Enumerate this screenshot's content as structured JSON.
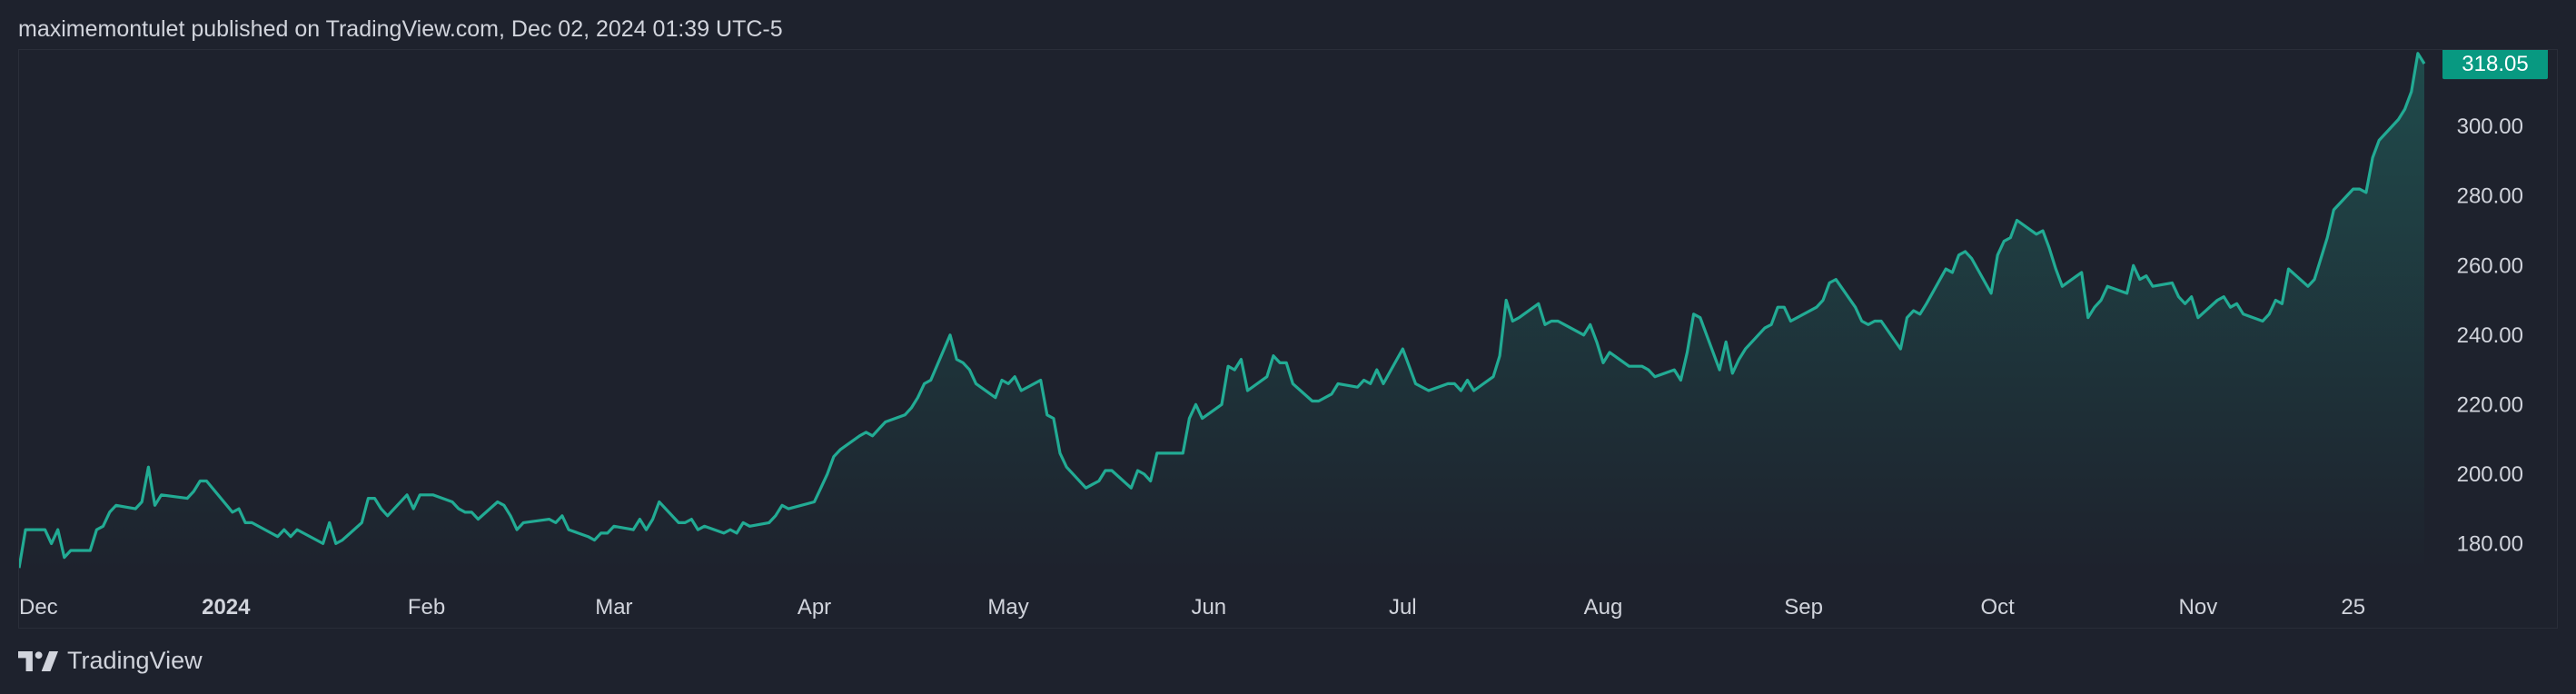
{
  "header": {
    "published_text": "maximemontulet published on TradingView.com, Dec 02, 2024 01:39 UTC-5"
  },
  "footer": {
    "brand": "TradingView"
  },
  "colors": {
    "background": "#1e222d",
    "line": "#22ab94",
    "fill_top": "#22ab94",
    "axis_text": "#d1d4dc",
    "price_badge": "#089981",
    "border": "#2a2e39"
  },
  "chart_data": {
    "type": "area",
    "title": "",
    "xlabel": "",
    "ylabel": "",
    "ylim": [
      172,
      322
    ],
    "y_ticks": [
      "180.00",
      "200.00",
      "220.00",
      "240.00",
      "260.00",
      "280.00",
      "300.00"
    ],
    "x_ticks": [
      {
        "label": "Dec",
        "date": "2023-12-01",
        "bold": false
      },
      {
        "label": "2024",
        "date": "2024-01-01",
        "bold": true
      },
      {
        "label": "Feb",
        "date": "2024-02-01",
        "bold": false
      },
      {
        "label": "Mar",
        "date": "2024-03-01",
        "bold": false
      },
      {
        "label": "Apr",
        "date": "2024-04-01",
        "bold": false
      },
      {
        "label": "May",
        "date": "2024-05-01",
        "bold": false
      },
      {
        "label": "Jun",
        "date": "2024-06-01",
        "bold": false
      },
      {
        "label": "Jul",
        "date": "2024-07-01",
        "bold": false
      },
      {
        "label": "Aug",
        "date": "2024-08-01",
        "bold": false
      },
      {
        "label": "Sep",
        "date": "2024-09-01",
        "bold": false
      },
      {
        "label": "Oct",
        "date": "2024-10-01",
        "bold": false
      },
      {
        "label": "Nov",
        "date": "2024-11-01",
        "bold": false
      },
      {
        "label": "25",
        "date": "2024-11-25",
        "bold": false
      }
    ],
    "last_price": "318.05",
    "series": [
      {
        "points": [
          [
            "2023-11-30",
            173
          ],
          [
            "2023-12-01",
            184
          ],
          [
            "2023-12-04",
            184
          ],
          [
            "2023-12-05",
            180
          ],
          [
            "2023-12-06",
            184
          ],
          [
            "2023-12-07",
            176
          ],
          [
            "2023-12-08",
            178
          ],
          [
            "2023-12-11",
            178
          ],
          [
            "2023-12-12",
            184
          ],
          [
            "2023-12-13",
            185
          ],
          [
            "2023-12-14",
            189
          ],
          [
            "2023-12-15",
            191
          ],
          [
            "2023-12-18",
            190
          ],
          [
            "2023-12-19",
            192
          ],
          [
            "2023-12-20",
            202
          ],
          [
            "2023-12-21",
            191
          ],
          [
            "2023-12-22",
            194
          ],
          [
            "2023-12-26",
            193
          ],
          [
            "2023-12-27",
            195
          ],
          [
            "2023-12-28",
            198
          ],
          [
            "2023-12-29",
            198
          ],
          [
            "2024-01-02",
            189
          ],
          [
            "2024-01-03",
            190
          ],
          [
            "2024-01-04",
            186
          ],
          [
            "2024-01-05",
            186
          ],
          [
            "2024-01-08",
            183
          ],
          [
            "2024-01-09",
            182
          ],
          [
            "2024-01-10",
            184
          ],
          [
            "2024-01-11",
            182
          ],
          [
            "2024-01-12",
            184
          ],
          [
            "2024-01-16",
            180
          ],
          [
            "2024-01-17",
            186
          ],
          [
            "2024-01-18",
            180
          ],
          [
            "2024-01-19",
            181
          ],
          [
            "2024-01-22",
            186
          ],
          [
            "2024-01-23",
            193
          ],
          [
            "2024-01-24",
            193
          ],
          [
            "2024-01-25",
            190
          ],
          [
            "2024-01-26",
            188
          ],
          [
            "2024-01-29",
            194
          ],
          [
            "2024-01-30",
            190
          ],
          [
            "2024-01-31",
            194
          ],
          [
            "2024-02-01",
            194
          ],
          [
            "2024-02-02",
            194
          ],
          [
            "2024-02-05",
            192
          ],
          [
            "2024-02-06",
            190
          ],
          [
            "2024-02-07",
            189
          ],
          [
            "2024-02-08",
            189
          ],
          [
            "2024-02-09",
            187
          ],
          [
            "2024-02-12",
            192
          ],
          [
            "2024-02-13",
            191
          ],
          [
            "2024-02-14",
            188
          ],
          [
            "2024-02-15",
            184
          ],
          [
            "2024-02-16",
            186
          ],
          [
            "2024-02-20",
            187
          ],
          [
            "2024-02-21",
            186
          ],
          [
            "2024-02-22",
            188
          ],
          [
            "2024-02-23",
            184
          ],
          [
            "2024-02-26",
            182
          ],
          [
            "2024-02-27",
            181
          ],
          [
            "2024-02-28",
            183
          ],
          [
            "2024-02-29",
            183
          ],
          [
            "2024-03-01",
            185
          ],
          [
            "2024-03-04",
            184
          ],
          [
            "2024-03-05",
            187
          ],
          [
            "2024-03-06",
            184
          ],
          [
            "2024-03-07",
            187
          ],
          [
            "2024-03-08",
            192
          ],
          [
            "2024-03-11",
            186
          ],
          [
            "2024-03-12",
            186
          ],
          [
            "2024-03-13",
            187
          ],
          [
            "2024-03-14",
            184
          ],
          [
            "2024-03-15",
            185
          ],
          [
            "2024-03-18",
            183
          ],
          [
            "2024-03-19",
            184
          ],
          [
            "2024-03-20",
            183
          ],
          [
            "2024-03-21",
            186
          ],
          [
            "2024-03-22",
            185
          ],
          [
            "2024-03-25",
            186
          ],
          [
            "2024-03-26",
            188
          ],
          [
            "2024-03-27",
            191
          ],
          [
            "2024-03-28",
            190
          ],
          [
            "2024-04-01",
            192
          ],
          [
            "2024-04-02",
            196
          ],
          [
            "2024-04-03",
            200
          ],
          [
            "2024-04-04",
            205
          ],
          [
            "2024-04-05",
            207
          ],
          [
            "2024-04-08",
            211
          ],
          [
            "2024-04-09",
            212
          ],
          [
            "2024-04-10",
            211
          ],
          [
            "2024-04-11",
            213
          ],
          [
            "2024-04-12",
            215
          ],
          [
            "2024-04-15",
            217
          ],
          [
            "2024-04-16",
            219
          ],
          [
            "2024-04-17",
            222
          ],
          [
            "2024-04-18",
            226
          ],
          [
            "2024-04-19",
            227
          ],
          [
            "2024-04-22",
            240
          ],
          [
            "2024-04-23",
            233
          ],
          [
            "2024-04-24",
            232
          ],
          [
            "2024-04-25",
            230
          ],
          [
            "2024-04-26",
            226
          ],
          [
            "2024-04-29",
            222
          ],
          [
            "2024-04-30",
            227
          ],
          [
            "2024-05-01",
            226
          ],
          [
            "2024-05-02",
            228
          ],
          [
            "2024-05-03",
            224
          ],
          [
            "2024-05-06",
            227
          ],
          [
            "2024-05-07",
            217
          ],
          [
            "2024-05-08",
            216
          ],
          [
            "2024-05-09",
            206
          ],
          [
            "2024-05-10",
            202
          ],
          [
            "2024-05-13",
            196
          ],
          [
            "2024-05-14",
            197
          ],
          [
            "2024-05-15",
            198
          ],
          [
            "2024-05-16",
            201
          ],
          [
            "2024-05-17",
            201
          ],
          [
            "2024-05-20",
            196
          ],
          [
            "2024-05-21",
            201
          ],
          [
            "2024-05-22",
            200
          ],
          [
            "2024-05-23",
            198
          ],
          [
            "2024-05-24",
            206
          ],
          [
            "2024-05-28",
            206
          ],
          [
            "2024-05-29",
            216
          ],
          [
            "2024-05-30",
            220
          ],
          [
            "2024-05-31",
            216
          ],
          [
            "2024-06-03",
            220
          ],
          [
            "2024-06-04",
            231
          ],
          [
            "2024-06-05",
            230
          ],
          [
            "2024-06-06",
            233
          ],
          [
            "2024-06-07",
            224
          ],
          [
            "2024-06-10",
            228
          ],
          [
            "2024-06-11",
            234
          ],
          [
            "2024-06-12",
            232
          ],
          [
            "2024-06-13",
            232
          ],
          [
            "2024-06-14",
            226
          ],
          [
            "2024-06-17",
            221
          ],
          [
            "2024-06-18",
            221
          ],
          [
            "2024-06-20",
            223
          ],
          [
            "2024-06-21",
            226
          ],
          [
            "2024-06-24",
            225
          ],
          [
            "2024-06-25",
            227
          ],
          [
            "2024-06-26",
            226
          ],
          [
            "2024-06-27",
            230
          ],
          [
            "2024-06-28",
            226
          ],
          [
            "2024-07-01",
            236
          ],
          [
            "2024-07-02",
            231
          ],
          [
            "2024-07-03",
            226
          ],
          [
            "2024-07-05",
            224
          ],
          [
            "2024-07-08",
            226
          ],
          [
            "2024-07-09",
            226
          ],
          [
            "2024-07-10",
            224
          ],
          [
            "2024-07-11",
            227
          ],
          [
            "2024-07-12",
            224
          ],
          [
            "2024-07-15",
            228
          ],
          [
            "2024-07-16",
            234
          ],
          [
            "2024-07-17",
            250
          ],
          [
            "2024-07-18",
            244
          ],
          [
            "2024-07-19",
            245
          ],
          [
            "2024-07-22",
            249
          ],
          [
            "2024-07-23",
            243
          ],
          [
            "2024-07-24",
            244
          ],
          [
            "2024-07-25",
            244
          ],
          [
            "2024-07-26",
            243
          ],
          [
            "2024-07-29",
            240
          ],
          [
            "2024-07-30",
            243
          ],
          [
            "2024-07-31",
            238
          ],
          [
            "2024-08-01",
            232
          ],
          [
            "2024-08-02",
            235
          ],
          [
            "2024-08-05",
            231
          ],
          [
            "2024-08-06",
            231
          ],
          [
            "2024-08-07",
            231
          ],
          [
            "2024-08-08",
            230
          ],
          [
            "2024-08-09",
            228
          ],
          [
            "2024-08-12",
            230
          ],
          [
            "2024-08-13",
            227
          ],
          [
            "2024-08-14",
            235
          ],
          [
            "2024-08-15",
            246
          ],
          [
            "2024-08-16",
            245
          ],
          [
            "2024-08-19",
            230
          ],
          [
            "2024-08-20",
            238
          ],
          [
            "2024-08-21",
            229
          ],
          [
            "2024-08-22",
            233
          ],
          [
            "2024-08-23",
            236
          ],
          [
            "2024-08-26",
            242
          ],
          [
            "2024-08-27",
            243
          ],
          [
            "2024-08-28",
            248
          ],
          [
            "2024-08-29",
            248
          ],
          [
            "2024-08-30",
            244
          ],
          [
            "2024-09-03",
            248
          ],
          [
            "2024-09-04",
            250
          ],
          [
            "2024-09-05",
            255
          ],
          [
            "2024-09-06",
            256
          ],
          [
            "2024-09-09",
            248
          ],
          [
            "2024-09-10",
            244
          ],
          [
            "2024-09-11",
            243
          ],
          [
            "2024-09-12",
            244
          ],
          [
            "2024-09-13",
            244
          ],
          [
            "2024-09-16",
            236
          ],
          [
            "2024-09-17",
            245
          ],
          [
            "2024-09-18",
            247
          ],
          [
            "2024-09-19",
            246
          ],
          [
            "2024-09-20",
            249
          ],
          [
            "2024-09-23",
            259
          ],
          [
            "2024-09-24",
            258
          ],
          [
            "2024-09-25",
            263
          ],
          [
            "2024-09-26",
            264
          ],
          [
            "2024-09-27",
            262
          ],
          [
            "2024-09-30",
            252
          ],
          [
            "2024-10-01",
            263
          ],
          [
            "2024-10-02",
            267
          ],
          [
            "2024-10-03",
            268
          ],
          [
            "2024-10-04",
            273
          ],
          [
            "2024-10-07",
            269
          ],
          [
            "2024-10-08",
            270
          ],
          [
            "2024-10-09",
            265
          ],
          [
            "2024-10-10",
            259
          ],
          [
            "2024-10-11",
            254
          ],
          [
            "2024-10-14",
            258
          ],
          [
            "2024-10-15",
            245
          ],
          [
            "2024-10-16",
            248
          ],
          [
            "2024-10-17",
            250
          ],
          [
            "2024-10-18",
            254
          ],
          [
            "2024-10-21",
            252
          ],
          [
            "2024-10-22",
            260
          ],
          [
            "2024-10-23",
            256
          ],
          [
            "2024-10-24",
            257
          ],
          [
            "2024-10-25",
            254
          ],
          [
            "2024-10-28",
            255
          ],
          [
            "2024-10-29",
            251
          ],
          [
            "2024-10-30",
            249
          ],
          [
            "2024-10-31",
            251
          ],
          [
            "2024-11-01",
            245
          ],
          [
            "2024-11-04",
            250
          ],
          [
            "2024-11-05",
            251
          ],
          [
            "2024-11-06",
            248
          ],
          [
            "2024-11-07",
            249
          ],
          [
            "2024-11-08",
            246
          ],
          [
            "2024-11-11",
            244
          ],
          [
            "2024-11-12",
            246
          ],
          [
            "2024-11-13",
            250
          ],
          [
            "2024-11-14",
            249
          ],
          [
            "2024-11-15",
            259
          ],
          [
            "2024-11-18",
            254
          ],
          [
            "2024-11-19",
            256
          ],
          [
            "2024-11-20",
            262
          ],
          [
            "2024-11-21",
            268
          ],
          [
            "2024-11-22",
            276
          ],
          [
            "2024-11-25",
            282
          ],
          [
            "2024-11-26",
            282
          ],
          [
            "2024-11-27",
            281
          ],
          [
            "2024-11-28",
            291
          ],
          [
            "2024-11-29",
            296
          ],
          [
            "2024-12-02",
            302
          ],
          [
            "2024-12-03",
            305
          ],
          [
            "2024-12-04",
            310
          ],
          [
            "2024-12-05",
            321
          ],
          [
            "2024-12-06",
            318.05
          ]
        ]
      }
    ]
  }
}
